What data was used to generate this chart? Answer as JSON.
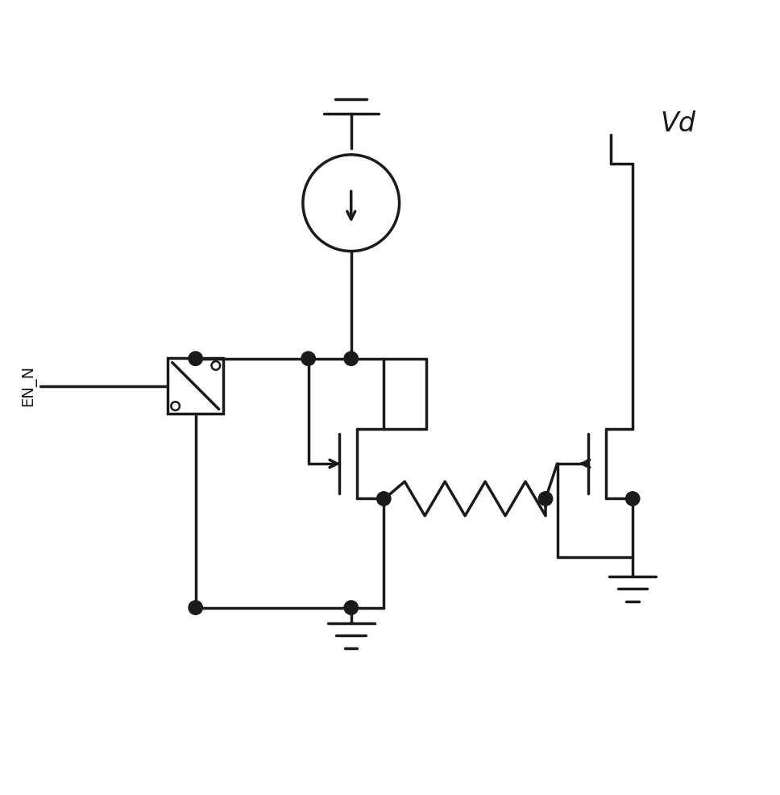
{
  "bg_color": "#ffffff",
  "line_color": "#1a1a1a",
  "lw": 2.5,
  "dot_r": 0.09,
  "figsize": [
    9.68,
    9.86
  ],
  "dpi": 100,
  "label_EN_N": "EN_N",
  "label_Vd": "Vd",
  "xlim": [
    0,
    10
  ],
  "ylim": [
    0,
    10
  ]
}
